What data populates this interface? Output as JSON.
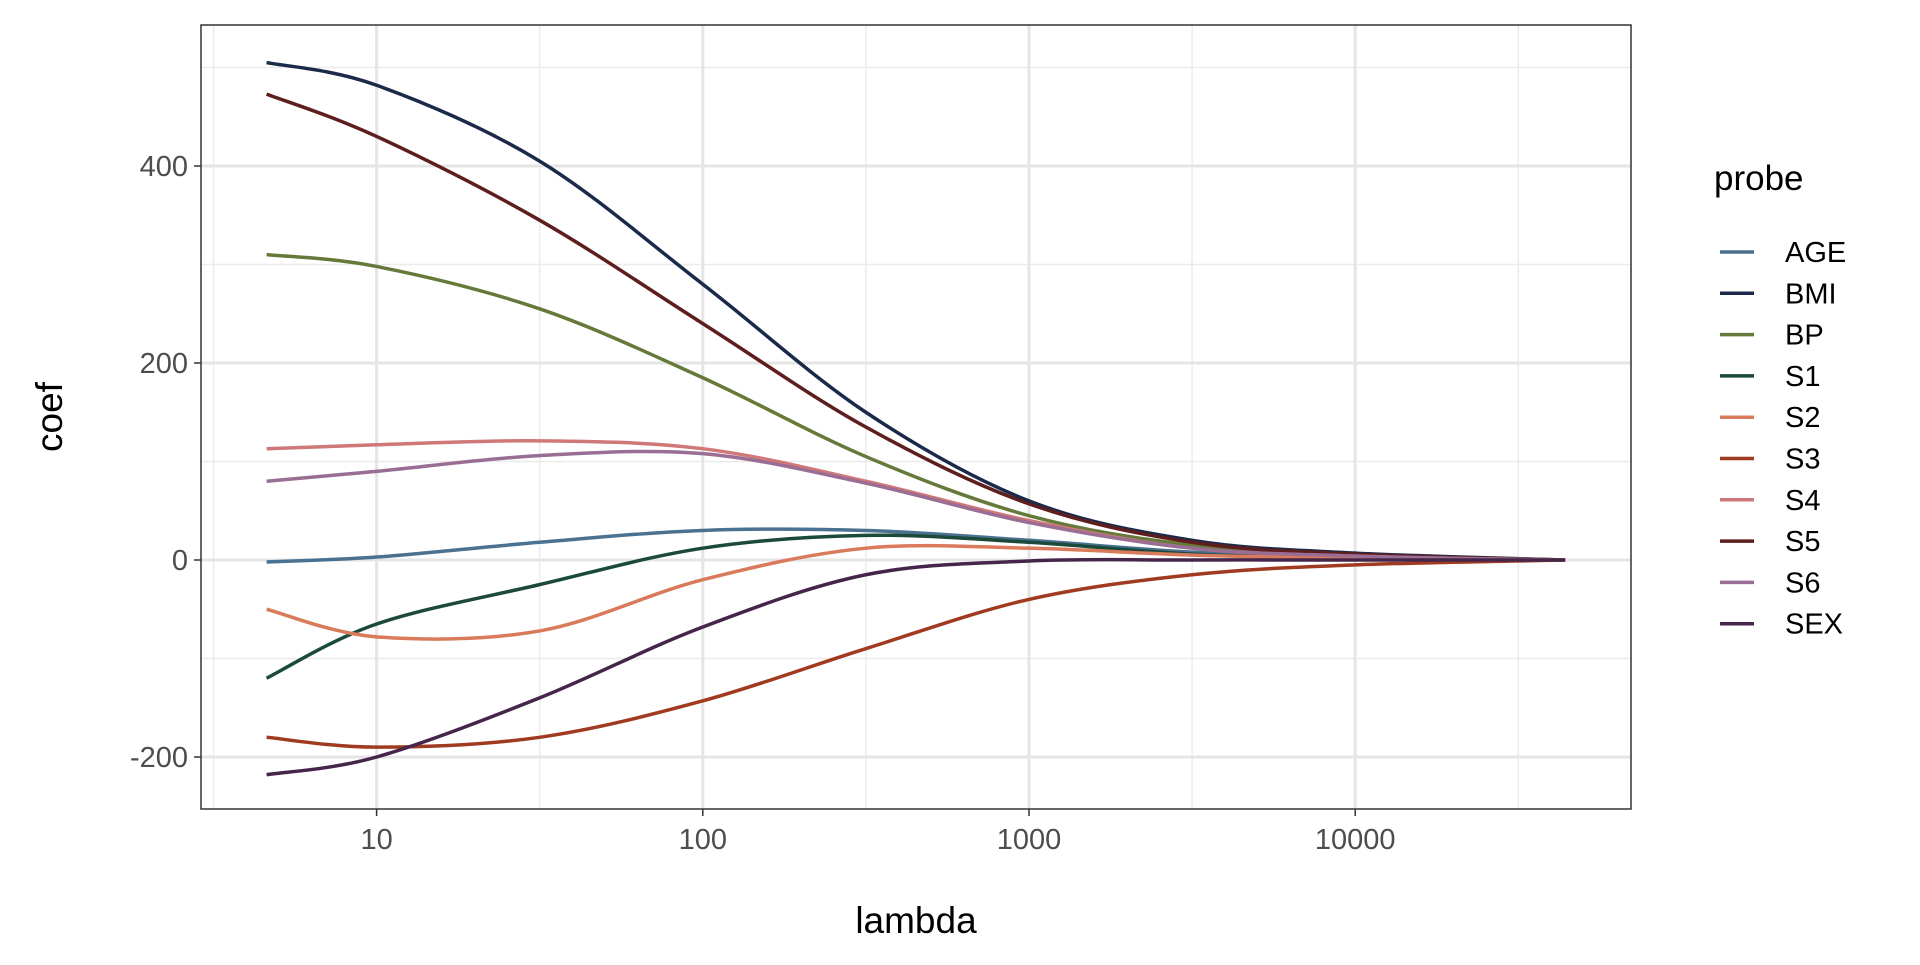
{
  "chart_data": {
    "type": "line",
    "title": "",
    "xlabel": "lambda",
    "ylabel": "coef",
    "x_scale": "log10",
    "xlim": [
      4.6,
      44000
    ],
    "ylim": [
      -250,
      530
    ],
    "x_ticks": [
      10,
      100,
      1000,
      10000
    ],
    "x_tick_labels": [
      "10",
      "100",
      "1000",
      "10000"
    ],
    "y_ticks": [
      -200,
      0,
      200,
      400
    ],
    "y_tick_labels": [
      "-200",
      "0",
      "200",
      "400"
    ],
    "grid": true,
    "legend_title": "probe",
    "legend_position": "right",
    "x": [
      4.6,
      10,
      31.6,
      100,
      316,
      1000,
      3162,
      10000,
      44000
    ],
    "series": [
      {
        "name": "AGE",
        "color": "#4a7190",
        "values": [
          -2,
          3,
          18,
          30,
          30,
          20,
          8,
          3,
          0
        ]
      },
      {
        "name": "BMI",
        "color": "#1b2a4a",
        "values": [
          505,
          482,
          405,
          280,
          150,
          60,
          20,
          7,
          0
        ]
      },
      {
        "name": "BP",
        "color": "#657a3a",
        "values": [
          310,
          298,
          255,
          185,
          105,
          45,
          15,
          5,
          0
        ]
      },
      {
        "name": "S1",
        "color": "#1b4a3a",
        "values": [
          -120,
          -65,
          -25,
          12,
          25,
          18,
          6,
          2,
          0
        ]
      },
      {
        "name": "S2",
        "color": "#d97a5a",
        "values": [
          -50,
          -78,
          -72,
          -20,
          12,
          12,
          5,
          2,
          0
        ]
      },
      {
        "name": "S3",
        "color": "#a03a20",
        "values": [
          -180,
          -190,
          -180,
          -143,
          -90,
          -40,
          -15,
          -5,
          0
        ]
      },
      {
        "name": "S4",
        "color": "#d07878",
        "values": [
          113,
          117,
          121,
          113,
          80,
          40,
          12,
          4,
          0
        ]
      },
      {
        "name": "S5",
        "color": "#5e1e1e",
        "values": [
          473,
          430,
          345,
          240,
          135,
          57,
          18,
          6,
          0
        ]
      },
      {
        "name": "S6",
        "color": "#9a6d94",
        "values": [
          80,
          90,
          106,
          108,
          78,
          38,
          12,
          4,
          0
        ]
      },
      {
        "name": "SEX",
        "color": "#45264a",
        "values": [
          -218,
          -200,
          -140,
          -68,
          -15,
          -1,
          0,
          0,
          0
        ]
      }
    ]
  }
}
